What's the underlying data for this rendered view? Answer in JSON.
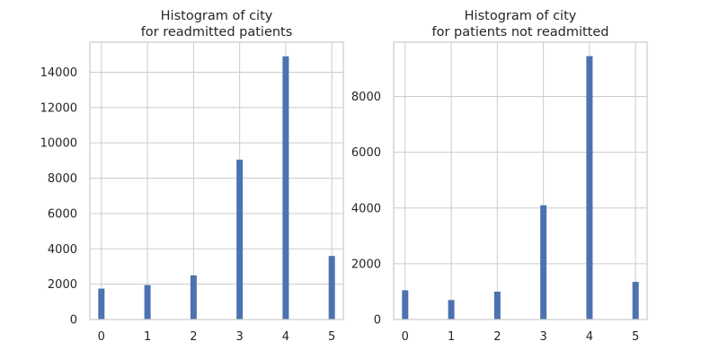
{
  "bar_color": "#4c72b0",
  "chart_data": [
    {
      "type": "bar",
      "title": [
        "Histogram of city",
        "for readmitted patients"
      ],
      "xlabel": "",
      "ylabel": "",
      "categories": [
        "0",
        "1",
        "2",
        "3",
        "4",
        "5"
      ],
      "x": [
        0,
        1,
        2,
        3,
        4,
        5
      ],
      "values": [
        1750,
        1950,
        2500,
        9050,
        14900,
        3600
      ],
      "xlim": [
        -0.25,
        5.25
      ],
      "ylim": [
        0,
        15700
      ],
      "yticks": [
        0,
        2000,
        4000,
        6000,
        8000,
        10000,
        12000,
        14000
      ],
      "grid": true,
      "legend": "none"
    },
    {
      "type": "bar",
      "title": [
        "Histogram of city",
        "for patients not readmitted"
      ],
      "xlabel": "",
      "ylabel": "",
      "categories": [
        "0",
        "1",
        "2",
        "3",
        "4",
        "5"
      ],
      "x": [
        0,
        1,
        2,
        3,
        4,
        5
      ],
      "values": [
        1050,
        700,
        1000,
        4100,
        9450,
        1350
      ],
      "xlim": [
        -0.25,
        5.25
      ],
      "ylim": [
        0,
        9950
      ],
      "yticks": [
        0,
        2000,
        4000,
        6000,
        8000
      ],
      "grid": true,
      "legend": "none"
    }
  ]
}
